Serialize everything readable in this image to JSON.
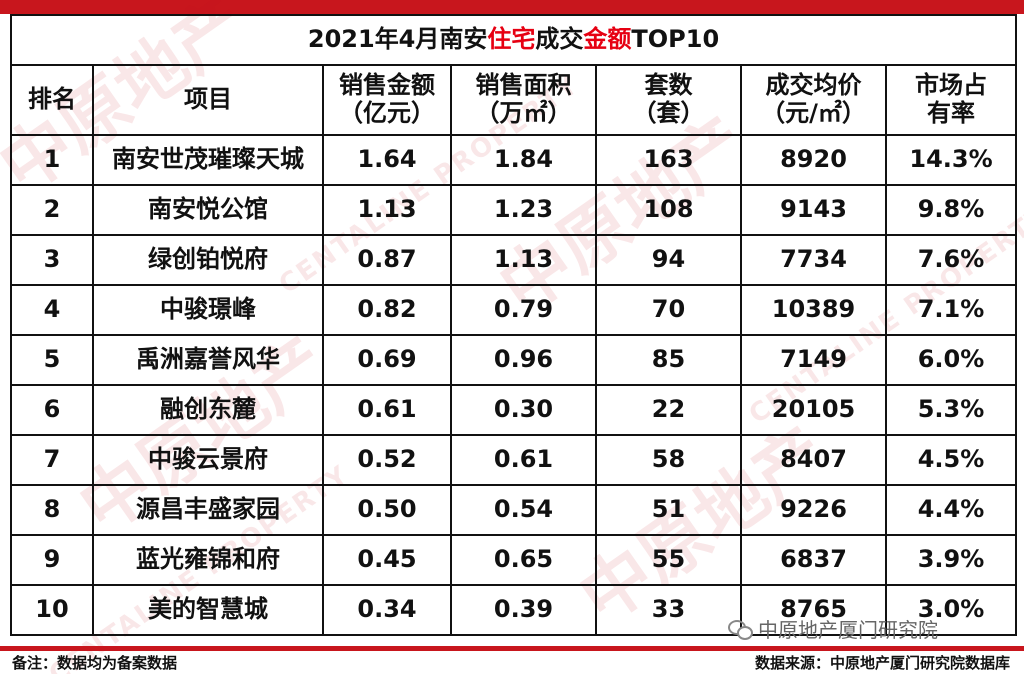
{
  "title": {
    "prefix": "2021年4月南安",
    "hl1": "住宅",
    "mid": "成交",
    "hl2": "金额",
    "suffix": "TOP10"
  },
  "headers": {
    "rank": "排名",
    "name": "项目",
    "amount": [
      "销售金额",
      "（亿元）"
    ],
    "area": [
      "销售面积",
      "（万㎡）"
    ],
    "sets": [
      "套数",
      "（套）"
    ],
    "price": [
      "成交均价",
      "（元/㎡）"
    ],
    "share": [
      "市场占",
      "有率"
    ]
  },
  "rows": [
    {
      "rank": "1",
      "name": "南安世茂璀璨天城",
      "amount": "1.64",
      "area": "1.84",
      "sets": "163",
      "price": "8920",
      "share": "14.3%"
    },
    {
      "rank": "2",
      "name": "南安悦公馆",
      "amount": "1.13",
      "area": "1.23",
      "sets": "108",
      "price": "9143",
      "share": "9.8%"
    },
    {
      "rank": "3",
      "name": "绿创铂悦府",
      "amount": "0.87",
      "area": "1.13",
      "sets": "94",
      "price": "7734",
      "share": "7.6%"
    },
    {
      "rank": "4",
      "name": "中骏璟峰",
      "amount": "0.82",
      "area": "0.79",
      "sets": "70",
      "price": "10389",
      "share": "7.1%"
    },
    {
      "rank": "5",
      "name": "禹洲嘉誉风华",
      "amount": "0.69",
      "area": "0.96",
      "sets": "85",
      "price": "7149",
      "share": "6.0%"
    },
    {
      "rank": "6",
      "name": "融创东麓",
      "amount": "0.61",
      "area": "0.30",
      "sets": "22",
      "price": "20105",
      "share": "5.3%"
    },
    {
      "rank": "7",
      "name": "中骏云景府",
      "amount": "0.52",
      "area": "0.61",
      "sets": "58",
      "price": "8407",
      "share": "4.5%"
    },
    {
      "rank": "8",
      "name": "源昌丰盛家园",
      "amount": "0.50",
      "area": "0.54",
      "sets": "51",
      "price": "9226",
      "share": "4.4%"
    },
    {
      "rank": "9",
      "name": "蓝光雍锦和府",
      "amount": "0.45",
      "area": "0.65",
      "sets": "55",
      "price": "6837",
      "share": "3.9%"
    },
    {
      "rank": "10",
      "name": "美的智慧城",
      "amount": "0.34",
      "area": "0.39",
      "sets": "33",
      "price": "8765",
      "share": "3.0%"
    }
  ],
  "brand": "中原地产厦门研究院",
  "note_left": "备注：数据均为备案数据",
  "note_right": "数据来源：中原地产厦门研究院数据库",
  "watermark": {
    "cn": "中原地产",
    "en": "CENTALINE PROPERTY"
  },
  "colors": {
    "accent": "#c8161d",
    "title_highlight": "#e60012"
  }
}
